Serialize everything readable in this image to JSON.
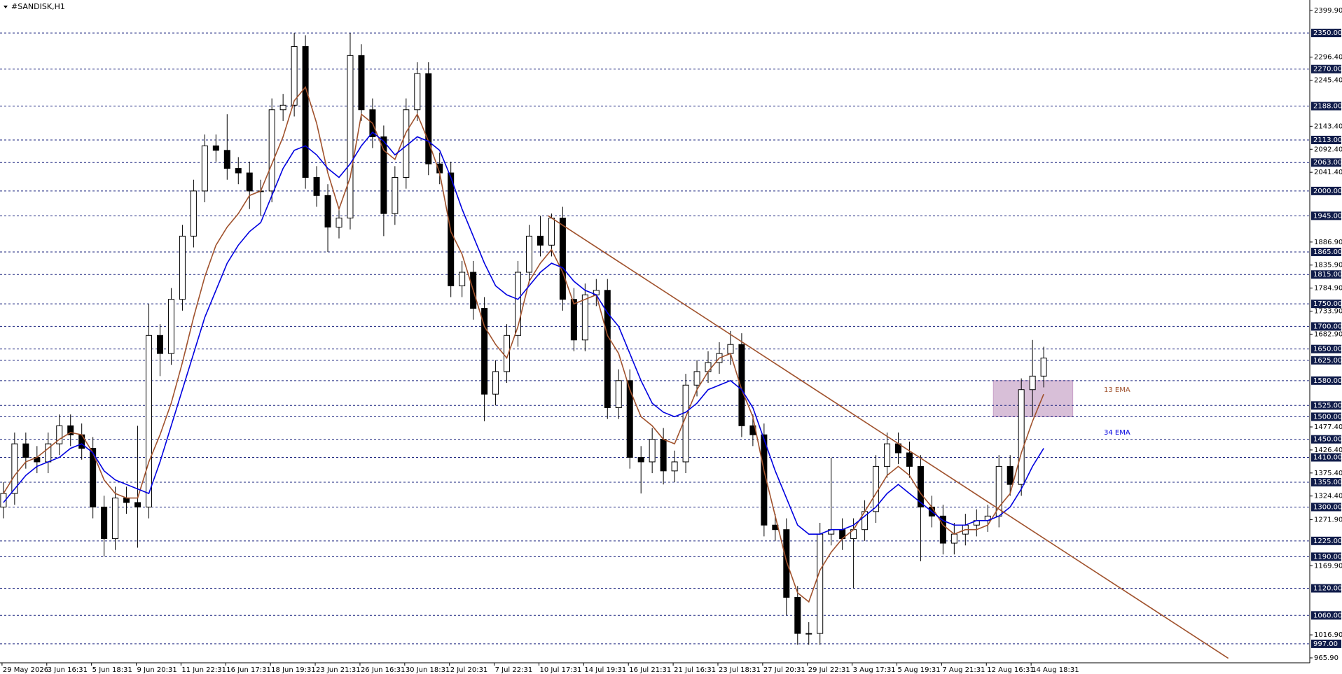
{
  "chart_data": {
    "type": "candlestick",
    "title": "#SANDISK,H1",
    "ylim": [
      955,
      2423
    ],
    "yticks": [
      {
        "value": 2399.9,
        "label": "2399.90"
      },
      {
        "value": 2296.4,
        "label": "2296.40"
      },
      {
        "value": 2245.4,
        "label": "2245.40"
      },
      {
        "value": 2143.4,
        "label": "2143.40"
      },
      {
        "value": 2092.4,
        "label": "2092.40"
      },
      {
        "value": 2041.4,
        "label": "2041.40"
      },
      {
        "value": 1886.9,
        "label": "1886.90"
      },
      {
        "value": 1835.9,
        "label": "1835.90"
      },
      {
        "value": 1784.9,
        "label": "1784.90"
      },
      {
        "value": 1733.9,
        "label": "1733.90"
      },
      {
        "value": 1682.9,
        "label": "1682.90"
      },
      {
        "value": 1477.4,
        "label": "1477.40"
      },
      {
        "value": 1426.4,
        "label": "1426.40"
      },
      {
        "value": 1375.4,
        "label": "1375.40"
      },
      {
        "value": 1324.4,
        "label": "1324.40"
      },
      {
        "value": 1271.9,
        "label": "1271.90"
      },
      {
        "value": 1169.9,
        "label": "1169.90"
      },
      {
        "value": 1016.9,
        "label": "1016.90"
      },
      {
        "value": 965.9,
        "label": "965.90"
      }
    ],
    "levels": [
      {
        "value": 2350,
        "label": "2350.00"
      },
      {
        "value": 2270,
        "label": "2270.00"
      },
      {
        "value": 2188,
        "label": "2188.00"
      },
      {
        "value": 2113,
        "label": "2113.00"
      },
      {
        "value": 2063,
        "label": "2063.00"
      },
      {
        "value": 2000,
        "label": "2000.00"
      },
      {
        "value": 1945,
        "label": "1945.00"
      },
      {
        "value": 1865,
        "label": "1865.00"
      },
      {
        "value": 1815,
        "label": "1815.00"
      },
      {
        "value": 1750,
        "label": "1750.00"
      },
      {
        "value": 1700,
        "label": "1700.00"
      },
      {
        "value": 1650,
        "label": "1650.00"
      },
      {
        "value": 1625,
        "label": "1625.00"
      },
      {
        "value": 1580,
        "label": "1580.00"
      },
      {
        "value": 1525,
        "label": "1525.00"
      },
      {
        "value": 1500,
        "label": "1500.00"
      },
      {
        "value": 1450,
        "label": "1450.00"
      },
      {
        "value": 1410,
        "label": "1410.00"
      },
      {
        "value": 1355,
        "label": "1355.00"
      },
      {
        "value": 1300,
        "label": "1300.00"
      },
      {
        "value": 1225,
        "label": "1225.00"
      },
      {
        "value": 1190,
        "label": "1190.00"
      },
      {
        "value": 1120,
        "label": "1120.00"
      },
      {
        "value": 1060,
        "label": "1060.00"
      },
      {
        "value": 997,
        "label": "997.00"
      }
    ],
    "x_labels": [
      "29 May 2026",
      "3 Jun 16:31",
      "5 Jun 18:31",
      "9 Jun 20:31",
      "11 Jun 22:31",
      "16 Jun 17:31",
      "18 Jun 19:31",
      "23 Jun 21:31",
      "26 Jun 16:31",
      "30 Jun 18:31",
      "2 Jul 20:31",
      "7 Jul 22:31",
      "10 Jul 17:31",
      "14 Jul 19:31",
      "16 Jul 21:31",
      "21 Jul 16:31",
      "23 Jul 18:31",
      "27 Jul 20:31",
      "29 Jul 22:31",
      "3 Aug 17:31",
      "5 Aug 19:31",
      "7 Aug 21:31",
      "12 Aug 16:31",
      "14 Aug 18:31"
    ],
    "open": [
      1300,
      1330,
      1440,
      1410,
      1400,
      1440,
      1480,
      1460,
      1430,
      1300,
      1230,
      1320,
      1310,
      1300,
      1680,
      1640,
      1760,
      1900,
      2000,
      2100,
      2090,
      2050,
      2040,
      2000,
      2000,
      2180,
      2190,
      2320,
      2030,
      1990,
      1920,
      1940,
      2300,
      2180,
      2120,
      1950,
      2030,
      2180,
      2260,
      2060,
      2040,
      1790,
      1820,
      1740,
      1550,
      1600,
      1680,
      1820,
      1900,
      1880,
      1940,
      1760,
      1670,
      1770,
      1780,
      1520,
      1580,
      1410,
      1400,
      1450,
      1380,
      1400,
      1570,
      1600,
      1620,
      1640,
      1660,
      1480,
      1460,
      1260,
      1250,
      1100,
      1020,
      1020,
      1240,
      1250,
      1230,
      1250,
      1290,
      1390,
      1440,
      1420,
      1390,
      1300,
      1280,
      1220,
      1240,
      1260,
      1270,
      1280,
      1390,
      1350,
      1560,
      1590
    ],
    "high": [
      1355,
      1465,
      1465,
      1435,
      1465,
      1505,
      1505,
      1485,
      1455,
      1325,
      1345,
      1345,
      1480,
      1750,
      1705,
      1785,
      1925,
      2025,
      2125,
      2125,
      2170,
      2075,
      2065,
      2025,
      2205,
      2215,
      2350,
      2345,
      2055,
      2015,
      1965,
      2350,
      2325,
      2205,
      2145,
      2055,
      2205,
      2285,
      2285,
      2085,
      2065,
      1845,
      1845,
      1765,
      1625,
      1705,
      1845,
      1925,
      1945,
      1950,
      1965,
      1785,
      1795,
      1805,
      1805,
      1605,
      1605,
      1435,
      1475,
      1475,
      1425,
      1595,
      1625,
      1645,
      1665,
      1690,
      1685,
      1505,
      1485,
      1285,
      1275,
      1125,
      1045,
      1265,
      1410,
      1275,
      1275,
      1315,
      1415,
      1465,
      1465,
      1445,
      1415,
      1325,
      1305,
      1265,
      1285,
      1295,
      1305,
      1415,
      1415,
      1585,
      1670,
      1655
    ],
    "low": [
      1275,
      1305,
      1385,
      1375,
      1375,
      1415,
      1435,
      1405,
      1275,
      1190,
      1205,
      1285,
      1210,
      1275,
      1590,
      1615,
      1735,
      1875,
      1975,
      2065,
      2025,
      2015,
      1960,
      1945,
      1975,
      2155,
      2165,
      2005,
      1965,
      1865,
      1895,
      1915,
      2155,
      2095,
      1900,
      1925,
      2005,
      2155,
      2035,
      2015,
      1765,
      1765,
      1715,
      1490,
      1525,
      1575,
      1655,
      1795,
      1855,
      1855,
      1735,
      1645,
      1645,
      1745,
      1495,
      1495,
      1385,
      1330,
      1375,
      1350,
      1355,
      1375,
      1545,
      1575,
      1595,
      1615,
      1455,
      1435,
      1235,
      1225,
      1060,
      995,
      995,
      995,
      1215,
      1205,
      1120,
      1225,
      1265,
      1365,
      1395,
      1365,
      1180,
      1255,
      1195,
      1195,
      1215,
      1235,
      1245,
      1255,
      1325,
      1325,
      1500,
      1565
    ],
    "close": [
      1330,
      1440,
      1410,
      1400,
      1440,
      1480,
      1460,
      1430,
      1300,
      1230,
      1320,
      1310,
      1300,
      1680,
      1640,
      1760,
      1900,
      2000,
      2100,
      2090,
      2050,
      2040,
      2000,
      2000,
      2180,
      2190,
      2320,
      2030,
      1990,
      1920,
      1940,
      2300,
      2180,
      2120,
      1950,
      2030,
      2180,
      2260,
      2060,
      2040,
      1790,
      1820,
      1740,
      1550,
      1600,
      1680,
      1820,
      1900,
      1880,
      1940,
      1760,
      1670,
      1770,
      1780,
      1520,
      1580,
      1410,
      1400,
      1450,
      1380,
      1400,
      1570,
      1600,
      1620,
      1640,
      1660,
      1480,
      1460,
      1260,
      1250,
      1100,
      1020,
      1020,
      1240,
      1250,
      1230,
      1250,
      1290,
      1390,
      1440,
      1420,
      1390,
      1300,
      1280,
      1220,
      1240,
      1260,
      1270,
      1280,
      1390,
      1350,
      1560,
      1590,
      1630
    ],
    "series": [
      {
        "name": "13 EMA",
        "color": "#a0522d",
        "values": [
          1330,
          1370,
          1400,
          1410,
          1430,
          1450,
          1465,
          1460,
          1420,
          1360,
          1330,
          1320,
          1320,
          1400,
          1460,
          1530,
          1620,
          1720,
          1810,
          1880,
          1920,
          1950,
          1990,
          2000,
          2060,
          2120,
          2200,
          2230,
          2150,
          2040,
          1960,
          2030,
          2170,
          2150,
          2090,
          2070,
          2130,
          2170,
          2110,
          2040,
          1910,
          1860,
          1780,
          1700,
          1660,
          1630,
          1700,
          1800,
          1840,
          1870,
          1820,
          1750,
          1760,
          1770,
          1680,
          1640,
          1560,
          1500,
          1480,
          1450,
          1440,
          1500,
          1560,
          1600,
          1630,
          1640,
          1560,
          1500,
          1380,
          1280,
          1180,
          1110,
          1090,
          1160,
          1200,
          1230,
          1250,
          1290,
          1330,
          1370,
          1390,
          1370,
          1330,
          1300,
          1260,
          1240,
          1250,
          1250,
          1260,
          1300,
          1330,
          1420,
          1490,
          1550
        ]
      },
      {
        "name": "34 EMA",
        "color": "#0000e0",
        "values": [
          1310,
          1340,
          1370,
          1390,
          1400,
          1410,
          1430,
          1440,
          1420,
          1380,
          1360,
          1350,
          1340,
          1330,
          1400,
          1480,
          1560,
          1640,
          1720,
          1780,
          1840,
          1880,
          1910,
          1930,
          1990,
          2050,
          2090,
          2100,
          2080,
          2050,
          2030,
          2060,
          2100,
          2130,
          2110,
          2080,
          2100,
          2120,
          2110,
          2090,
          2030,
          1960,
          1900,
          1840,
          1790,
          1770,
          1760,
          1790,
          1820,
          1840,
          1830,
          1800,
          1780,
          1770,
          1730,
          1700,
          1640,
          1580,
          1530,
          1510,
          1500,
          1510,
          1530,
          1560,
          1570,
          1580,
          1560,
          1520,
          1450,
          1380,
          1320,
          1260,
          1240,
          1240,
          1250,
          1250,
          1260,
          1280,
          1300,
          1330,
          1350,
          1330,
          1310,
          1290,
          1270,
          1260,
          1260,
          1270,
          1270,
          1280,
          1300,
          1340,
          1390,
          1430
        ]
      }
    ],
    "trendline": {
      "values": [
        1945,
        965
      ],
      "color": "#a0522d"
    },
    "zone": {
      "values": [
        1500,
        1580
      ],
      "color": "#d8bfd8"
    }
  }
}
